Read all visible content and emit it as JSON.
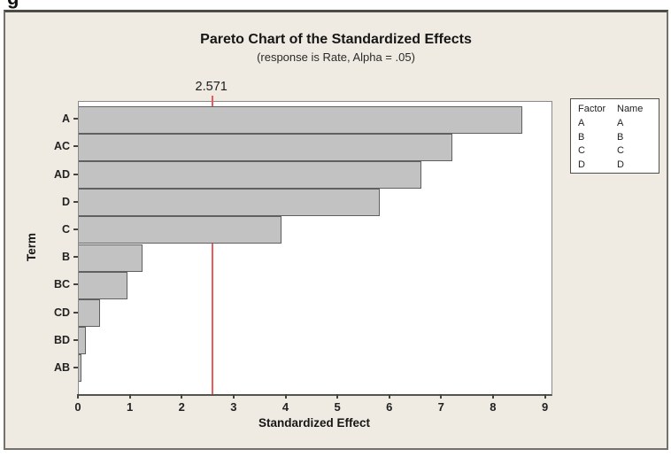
{
  "page": {
    "cropped_caption_fragment": "g"
  },
  "chart_data": {
    "type": "bar",
    "orientation": "horizontal",
    "title": "Pareto Chart of the Standardized Effects",
    "subtitle": "(response is Rate, Alpha = .05)",
    "xlabel": "Standardized Effect",
    "ylabel": "Term",
    "categories": [
      "A",
      "AC",
      "AD",
      "D",
      "C",
      "B",
      "BC",
      "CD",
      "BD",
      "AB"
    ],
    "values": [
      8.55,
      7.2,
      6.6,
      5.8,
      3.9,
      1.22,
      0.93,
      0.41,
      0.13,
      0.05
    ],
    "x_ticks": [
      "0",
      "1",
      "2",
      "3",
      "4",
      "5",
      "6",
      "7",
      "8",
      "9"
    ],
    "xlim": [
      0,
      9.11
    ],
    "grid": false,
    "legend_position": "outside-top-right",
    "reference_line": {
      "value": 2.571,
      "label": "2.571"
    },
    "legend": {
      "header_factor": "Factor",
      "header_name": "Name",
      "rows": [
        {
          "factor": "A",
          "name": "A"
        },
        {
          "factor": "B",
          "name": "B"
        },
        {
          "factor": "C",
          "name": "C"
        },
        {
          "factor": "D",
          "name": "D"
        }
      ]
    },
    "colors": {
      "background": "#efebe2",
      "plot_background": "#ffffff",
      "bar_fill": "#c2c2c2",
      "bar_border": "#606060",
      "reference_line": "#ee5a5a"
    }
  }
}
